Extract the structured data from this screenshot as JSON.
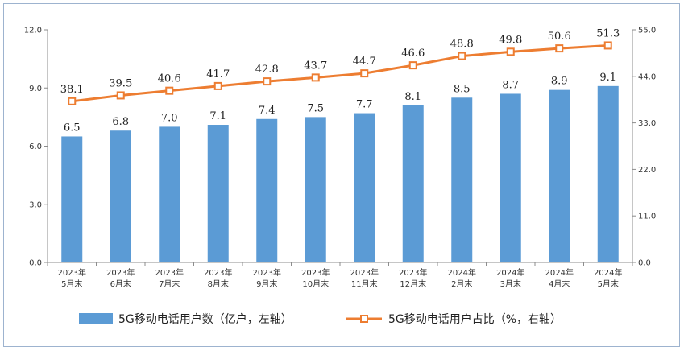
{
  "chart_data": {
    "type": "bar+line",
    "categories": [
      [
        "2023年",
        "5月末"
      ],
      [
        "2023年",
        "6月末"
      ],
      [
        "2023年",
        "7月末"
      ],
      [
        "2023年",
        "8月末"
      ],
      [
        "2023年",
        "9月末"
      ],
      [
        "2023年",
        "10月末"
      ],
      [
        "2023年",
        "11月末"
      ],
      [
        "2023年",
        "12月末"
      ],
      [
        "2024年",
        "2月末"
      ],
      [
        "2024年",
        "3月末"
      ],
      [
        "2024年",
        "4月末"
      ],
      [
        "2024年",
        "5月末"
      ]
    ],
    "series": [
      {
        "name": "5G移动电话用户数（亿户，左轴）",
        "type": "bar",
        "axis": "left",
        "color": "#5b9bd5",
        "values": [
          6.5,
          6.8,
          7.0,
          7.1,
          7.4,
          7.5,
          7.7,
          8.1,
          8.5,
          8.7,
          8.9,
          9.1
        ],
        "labels": [
          "6.5",
          "6.8",
          "7.0",
          "7.1",
          "7.4",
          "7.5",
          "7.7",
          "8.1",
          "8.5",
          "8.7",
          "8.9",
          "9.1"
        ]
      },
      {
        "name": "5G移动电话用户占比（%，右轴）",
        "type": "line",
        "axis": "right",
        "color": "#ed7d31",
        "values": [
          38.1,
          39.5,
          40.6,
          41.7,
          42.8,
          43.7,
          44.7,
          46.6,
          48.8,
          49.8,
          50.6,
          51.3
        ],
        "labels": [
          "38.1",
          "39.5",
          "40.6",
          "41.7",
          "42.8",
          "43.7",
          "44.7",
          "46.6",
          "48.8",
          "49.8",
          "50.6",
          "51.3"
        ]
      }
    ],
    "left_axis": {
      "range": [
        0,
        12
      ],
      "ticks": [
        "0.0",
        "3.0",
        "6.0",
        "9.0",
        "12.0"
      ]
    },
    "right_axis": {
      "range": [
        0,
        55
      ],
      "ticks": [
        "0.0",
        "11.0",
        "22.0",
        "33.0",
        "44.0",
        "55.0"
      ]
    },
    "legend_position": "bottom",
    "grid": false
  }
}
